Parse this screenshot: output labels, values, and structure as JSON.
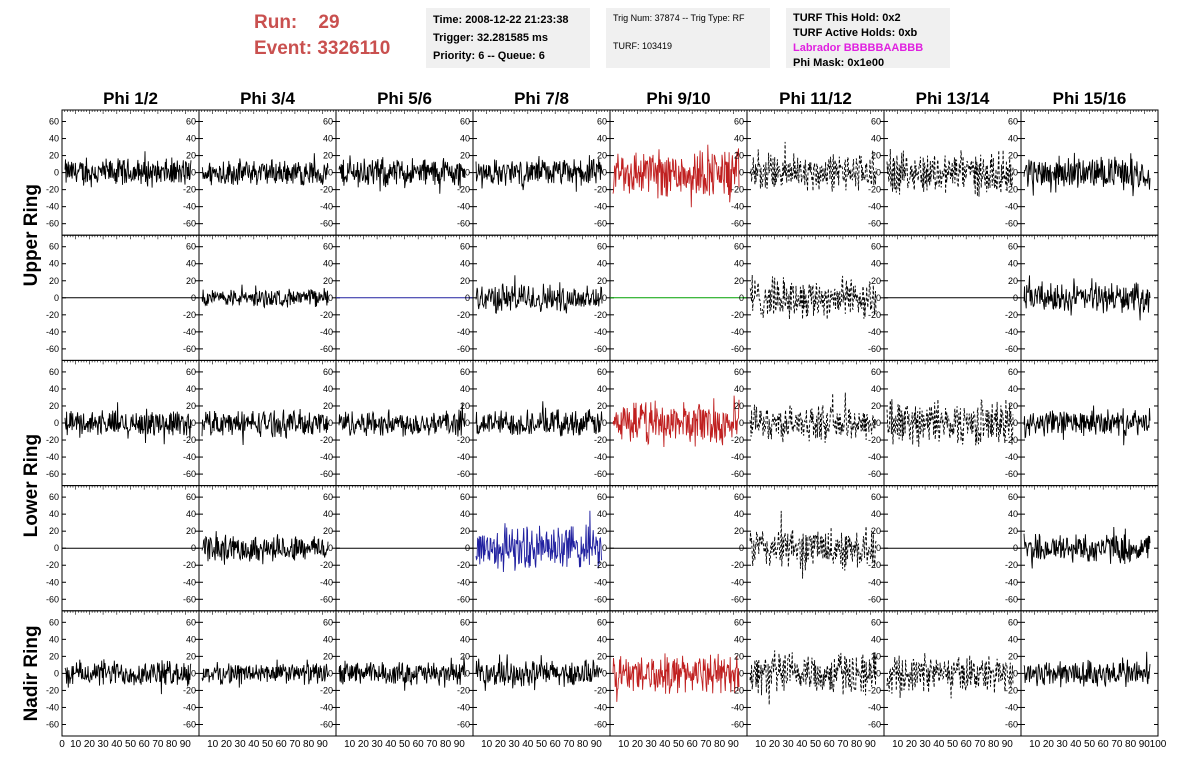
{
  "header": {
    "run_label": "Run:",
    "run_value": "29",
    "event_label": "Event:",
    "event_value": "3326110"
  },
  "info_time": {
    "time": "Time: 2008-12-22 21:23:38",
    "trigger": "Trigger: 32.281585 ms",
    "priority": "Priority: 6 -- Queue: 6"
  },
  "info_trig": {
    "trig": "Trig Num: 37874 -- Trig Type: RF",
    "turf": "TURF: 103419"
  },
  "info_turf": {
    "hold": "TURF This Hold: 0x2",
    "active": "TURF Active Holds: 0xb",
    "labrador": "Labrador BBBBBAABBB",
    "phimask": "Phi Mask: 0x1e00"
  },
  "colors": {
    "red": "#c02020",
    "blue": "#2020a0",
    "green": "#00a000",
    "black": "#000000",
    "header_red": "#c9504f",
    "labrador": "#e020e0"
  },
  "chart_data": {
    "type": "line",
    "columns": [
      "Phi 1/2",
      "Phi 3/4",
      "Phi 5/6",
      "Phi 7/8",
      "Phi 9/10",
      "Phi 11/12",
      "Phi 13/14",
      "Phi 15/16"
    ],
    "row_labels": [
      "Upper Ring",
      "Lower Ring",
      "Nadir Ring"
    ],
    "ylim": [
      -70,
      70
    ],
    "y_ticks": [
      -60,
      -40,
      -20,
      0,
      20,
      40,
      60
    ],
    "xlim": [
      0,
      100
    ],
    "x_tick_labels": [
      "0",
      "10",
      "20",
      "30",
      "40",
      "50",
      "60",
      "70",
      "80",
      "90",
      "100"
    ],
    "panels": [
      [
        {
          "style": "solid",
          "color": "black",
          "amp": 16
        },
        {
          "style": "solid",
          "color": "black",
          "amp": 15
        },
        {
          "style": "solid",
          "color": "black",
          "amp": 17
        },
        {
          "style": "solid",
          "color": "black",
          "amp": 15
        },
        {
          "style": "solid",
          "color": "red",
          "amp": 28
        },
        {
          "style": "dashed",
          "color": "black",
          "amp": 22
        },
        {
          "style": "dashed",
          "color": "black",
          "amp": 24
        },
        {
          "style": "solid",
          "color": "black",
          "amp": 18
        }
      ],
      [
        {
          "style": "flat",
          "color": "black",
          "amp": 0
        },
        {
          "style": "solid",
          "color": "black",
          "amp": 10
        },
        {
          "style": "flat",
          "color": "blue",
          "amp": 0
        },
        {
          "style": "solid",
          "color": "black",
          "amp": 17
        },
        {
          "style": "flat",
          "color": "green",
          "amp": 0
        },
        {
          "style": "dashed",
          "color": "black",
          "amp": 23
        },
        {
          "style": "flat",
          "color": "black",
          "amp": 0
        },
        {
          "style": "solid",
          "color": "black",
          "amp": 16
        }
      ],
      [
        {
          "style": "solid",
          "color": "black",
          "amp": 15
        },
        {
          "style": "solid",
          "color": "black",
          "amp": 15
        },
        {
          "style": "solid",
          "color": "black",
          "amp": 15
        },
        {
          "style": "solid",
          "color": "black",
          "amp": 15
        },
        {
          "style": "solid",
          "color": "red",
          "amp": 25
        },
        {
          "style": "dashed",
          "color": "black",
          "amp": 20
        },
        {
          "style": "dashed",
          "color": "black",
          "amp": 25
        },
        {
          "style": "solid",
          "color": "black",
          "amp": 15
        }
      ],
      [
        {
          "style": "flat",
          "color": "black",
          "amp": 0
        },
        {
          "style": "solid",
          "color": "black",
          "amp": 15
        },
        {
          "style": "flat",
          "color": "black",
          "amp": 0
        },
        {
          "style": "solid",
          "color": "blue",
          "amp": 25
        },
        {
          "style": "flat",
          "color": "black",
          "amp": 0
        },
        {
          "style": "dashed",
          "color": "black",
          "amp": 24
        },
        {
          "style": "flat",
          "color": "black",
          "amp": 0
        },
        {
          "style": "solid",
          "color": "black",
          "amp": 17
        }
      ],
      [
        {
          "style": "solid",
          "color": "black",
          "amp": 15
        },
        {
          "style": "solid",
          "color": "black",
          "amp": 12
        },
        {
          "style": "solid",
          "color": "black",
          "amp": 13
        },
        {
          "style": "solid",
          "color": "black",
          "amp": 15
        },
        {
          "style": "solid",
          "color": "red",
          "amp": 22
        },
        {
          "style": "dashed",
          "color": "black",
          "amp": 25
        },
        {
          "style": "dashed",
          "color": "black",
          "amp": 20
        },
        {
          "style": "solid",
          "color": "black",
          "amp": 16
        }
      ]
    ]
  }
}
